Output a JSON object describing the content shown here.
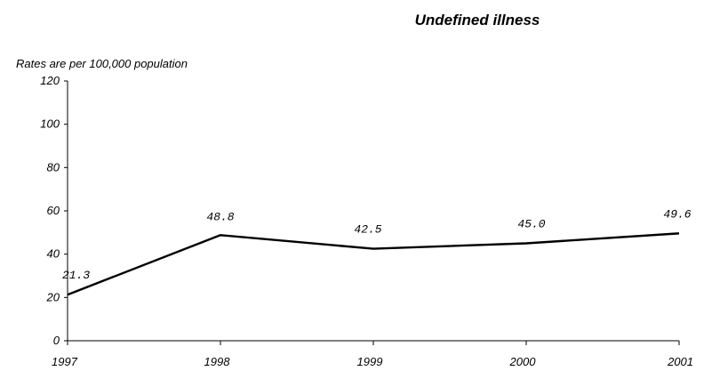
{
  "chart_data": {
    "type": "line",
    "title": "Undefined illness",
    "note": "Rates are per 100,000 population",
    "xlabel": "",
    "ylabel": "",
    "categories": [
      "1997",
      "1998",
      "1999",
      "2000",
      "2001"
    ],
    "values": [
      21.3,
      48.8,
      42.5,
      45.0,
      49.6
    ],
    "value_labels": [
      "21.3",
      "48.8",
      "42.5",
      "45.0",
      "49.6"
    ],
    "ylim": [
      0,
      120
    ],
    "yticks": [
      0,
      20,
      40,
      60,
      80,
      100,
      120
    ],
    "ytick_labels": [
      "0",
      "20",
      "40",
      "60",
      "80",
      "100",
      "120"
    ],
    "grid": false,
    "legend": "none",
    "line_color": "#000000"
  }
}
